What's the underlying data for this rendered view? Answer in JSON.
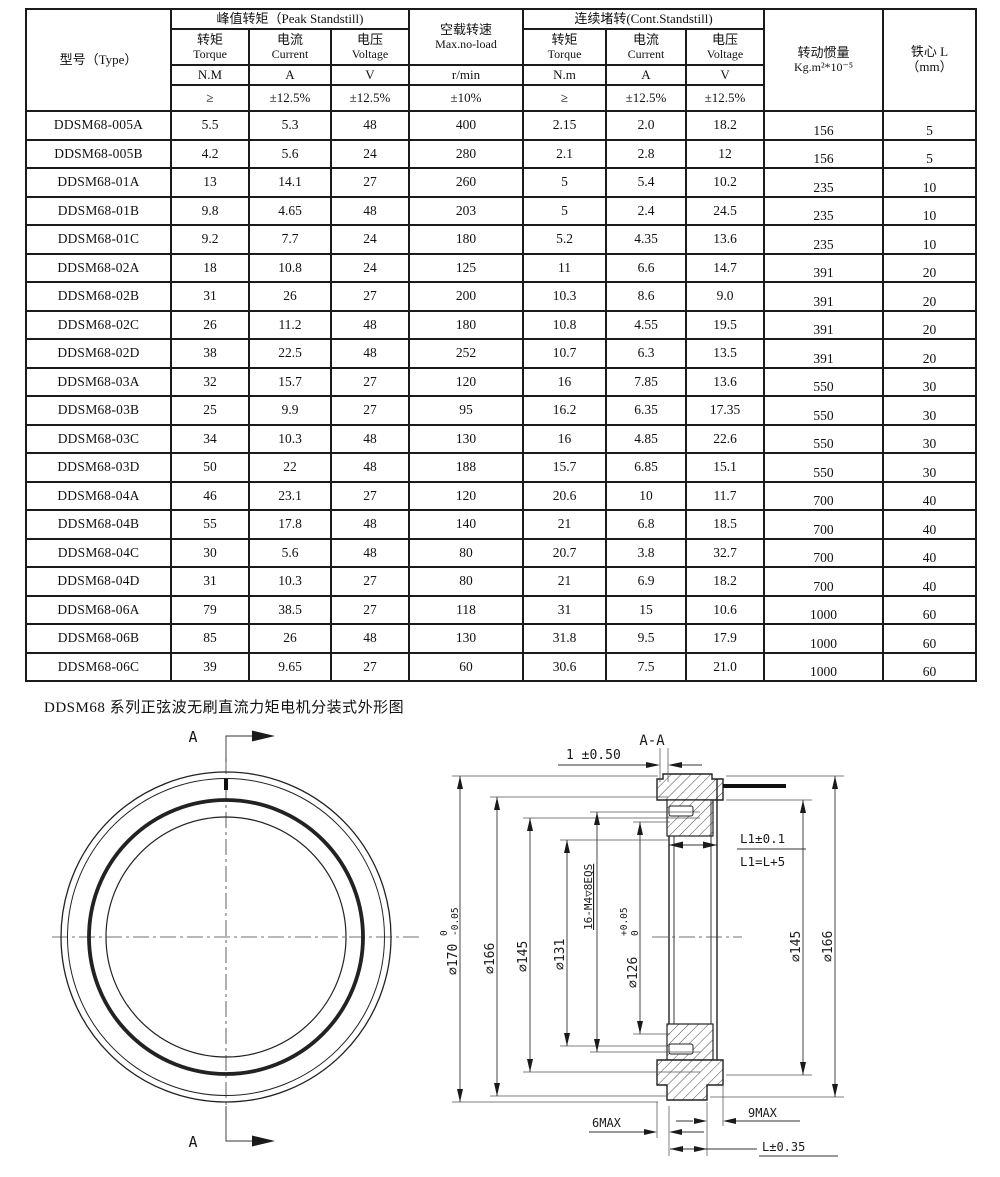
{
  "table": {
    "headers": {
      "type": "型号（Type）",
      "peak_group": "峰值转矩（Peak Standstill)",
      "noload_cn": "空载转速",
      "noload_en": "Max.no-load",
      "cont_group": "连续堵转(Cont.Standstill)",
      "inertia_cn": "转动惯量",
      "inertia_unit": "Kg.m²*10⁻⁵",
      "core_cn": "铁心 L",
      "core_unit": "（mm）",
      "torque_cn": "转矩",
      "torque_en": "Torque",
      "current_cn": "电流",
      "current_en": "Current",
      "voltage_cn": "电压",
      "voltage_en": "Voltage",
      "unit_nm_peak": "N.M",
      "unit_a": "A",
      "unit_v": "V",
      "unit_rpm": "r/min",
      "unit_nm_cont": "N.m",
      "tol_ge": "≥",
      "tol_pct": "±12.5%",
      "tol_speed": "±10%"
    },
    "rows": [
      [
        "DDSM68-005A",
        "5.5",
        "5.3",
        "48",
        "400",
        "2.15",
        "2.0",
        "18.2",
        "156",
        "5"
      ],
      [
        "DDSM68-005B",
        "4.2",
        "5.6",
        "24",
        "280",
        "2.1",
        "2.8",
        "12",
        "156",
        "5"
      ],
      [
        "DDSM68-01A",
        "13",
        "14.1",
        "27",
        "260",
        "5",
        "5.4",
        "10.2",
        "235",
        "10"
      ],
      [
        "DDSM68-01B",
        "9.8",
        "4.65",
        "48",
        "203",
        "5",
        "2.4",
        "24.5",
        "235",
        "10"
      ],
      [
        "DDSM68-01C",
        "9.2",
        "7.7",
        "24",
        "180",
        "5.2",
        "4.35",
        "13.6",
        "235",
        "10"
      ],
      [
        "DDSM68-02A",
        "18",
        "10.8",
        "24",
        "125",
        "11",
        "6.6",
        "14.7",
        "391",
        "20"
      ],
      [
        "DDSM68-02B",
        "31",
        "26",
        "27",
        "200",
        "10.3",
        "8.6",
        "9.0",
        "391",
        "20"
      ],
      [
        "DDSM68-02C",
        "26",
        "11.2",
        "48",
        "180",
        "10.8",
        "4.55",
        "19.5",
        "391",
        "20"
      ],
      [
        "DDSM68-02D",
        "38",
        "22.5",
        "48",
        "252",
        "10.7",
        "6.3",
        "13.5",
        "391",
        "20"
      ],
      [
        "DDSM68-03A",
        "32",
        "15.7",
        "27",
        "120",
        "16",
        "7.85",
        "13.6",
        "550",
        "30"
      ],
      [
        "DDSM68-03B",
        "25",
        "9.9",
        "27",
        "95",
        "16.2",
        "6.35",
        "17.35",
        "550",
        "30"
      ],
      [
        "DDSM68-03C",
        "34",
        "10.3",
        "48",
        "130",
        "16",
        "4.85",
        "22.6",
        "550",
        "30"
      ],
      [
        "DDSM68-03D",
        "50",
        "22",
        "48",
        "188",
        "15.7",
        "6.85",
        "15.1",
        "550",
        "30"
      ],
      [
        "DDSM68-04A",
        "46",
        "23.1",
        "27",
        "120",
        "20.6",
        "10",
        "11.7",
        "700",
        "40"
      ],
      [
        "DDSM68-04B",
        "55",
        "17.8",
        "48",
        "140",
        "21",
        "6.8",
        "18.5",
        "700",
        "40"
      ],
      [
        "DDSM68-04C",
        "30",
        "5.6",
        "48",
        "80",
        "20.7",
        "3.8",
        "32.7",
        "700",
        "40"
      ],
      [
        "DDSM68-04D",
        "31",
        "10.3",
        "27",
        "80",
        "21",
        "6.9",
        "18.2",
        "700",
        "40"
      ],
      [
        "DDSM68-06A",
        "79",
        "38.5",
        "27",
        "118",
        "31",
        "15",
        "10.6",
        "1000",
        "60"
      ],
      [
        "DDSM68-06B",
        "85",
        "26",
        "48",
        "130",
        "31.8",
        "9.5",
        "17.9",
        "1000",
        "60"
      ],
      [
        "DDSM68-06C",
        "39",
        "9.65",
        "27",
        "60",
        "30.6",
        "7.5",
        "21.0",
        "1000",
        "60"
      ]
    ]
  },
  "caption": "DDSM68 系列正弦波无刷直流力矩电机分装式外形图",
  "drawing": {
    "section_view_label": "A-A",
    "section_arrow_label": "A",
    "dim_top_gap": "1 ±0.50",
    "dim_d170": "∅170",
    "dim_d170_tol_upper": "0",
    "dim_d170_tol_lower": "-0.05",
    "dim_d166_left": "∅166",
    "dim_d145_left": "∅145",
    "dim_d131": "∅131",
    "dim_bolts": "16-M4▽8EQS",
    "dim_d126": "∅126",
    "dim_d126_tol_upper": "+0.05",
    "dim_d126_tol_lower": "0",
    "dim_d145_right": "∅145",
    "dim_d166_right": "∅166",
    "dim_l1_tol": "L1±0.1",
    "dim_l1_eq": "L1=L+5",
    "dim_6max": "6MAX",
    "dim_9max": "9MAX",
    "dim_l_tol": "L±0.35"
  }
}
